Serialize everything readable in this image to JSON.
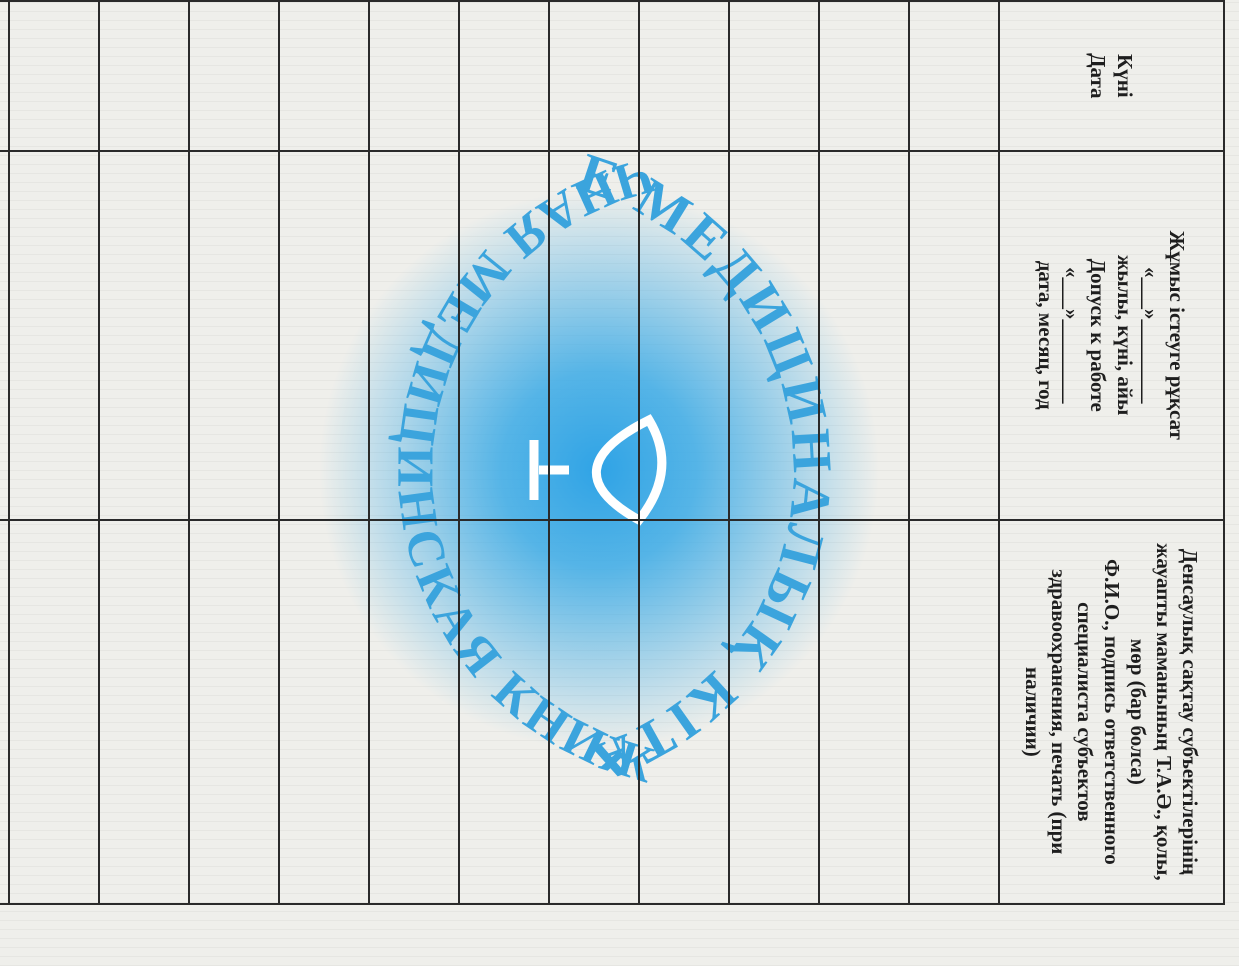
{
  "header": {
    "cells": [
      {
        "lines": [
          "Күні",
          "Дата"
        ]
      },
      {
        "lines": [
          "Жұмыс істеуге рұқсат",
          "«___»________",
          "жылы, күні, айы",
          "Допуск к работе",
          "«___»________",
          "дата, месяц, год"
        ]
      },
      {
        "lines": [
          "Денсаулық сақтау субъектілерінің жауапты маманының Т.А.Ә., қолы, мөр (бар болса)",
          "Ф.И.О., подпись ответственного специалиста субъектов здравоохранения, печать (при наличии)"
        ]
      }
    ]
  },
  "watermark": {
    "top": "ЖЕКЕ МЕДИЦИНАЛЫҚ КІТАПША",
    "bottom": "ЛИЧНАЯ МЕДИЦИНСКАЯ КНИЖКА"
  }
}
